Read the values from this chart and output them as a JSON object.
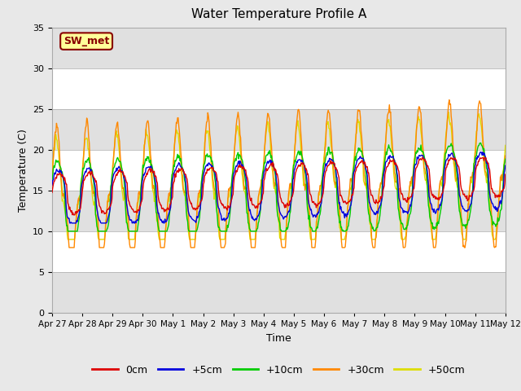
{
  "title": "Water Temperature Profile A",
  "xlabel": "Time",
  "ylabel": "Temperature (C)",
  "ylim": [
    0,
    35
  ],
  "yticks": [
    0,
    5,
    10,
    15,
    20,
    25,
    30,
    35
  ],
  "fig_bg_color": "#e8e8e8",
  "plot_bg_color": "#ffffff",
  "grid_band_color": "#e0e0e0",
  "legend_label": "SW_met",
  "legend_box_color": "#ffff99",
  "legend_box_edge": "#880000",
  "series_colors": {
    "0cm": "#dd0000",
    "+5cm": "#0000dd",
    "+10cm": "#00cc00",
    "+30cm": "#ff8800",
    "+50cm": "#dddd00"
  },
  "x_tick_labels": [
    "Apr 27",
    "Apr 28",
    "Apr 29",
    "Apr 30",
    "May 1",
    "May 2",
    "May 3",
    "May 4",
    "May 5",
    "May 6",
    "May 7",
    "May 8",
    "May 9",
    "May 10",
    "May 11",
    "May 12"
  ],
  "n_days": 15,
  "pts_per_day": 48
}
